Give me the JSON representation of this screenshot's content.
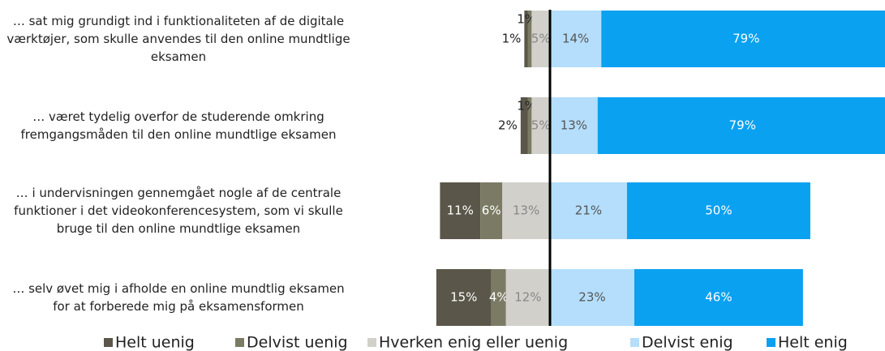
{
  "chart_data": {
    "type": "diverging-bar",
    "categories": [
      "… sat mig grundigt ind i funktionaliteten af de digitale værktøjer, som skulle anvendes til den online mundtlige eksamen",
      "… været tydelig overfor de studerende omkring fremgangsmåden til den online mundtlige eksamen",
      "… i undervisningen gennemgået nogle af de centrale funktioner i det videokonferencesystem, som vi skulle bruge til den online mundtlige eksamen",
      "… selv øvet mig i afholde en online mundtlig eksamen for at forberede mig på eksamensformen"
    ],
    "series": [
      {
        "name": "Helt uenig",
        "color": "#5a5649",
        "side": "left",
        "values": [
          1,
          2,
          11,
          15
        ],
        "value_labels": [
          "1%",
          "2%",
          "11%",
          "15%"
        ]
      },
      {
        "name": "Delvist uenig",
        "color": "#7b7b65",
        "side": "left",
        "values": [
          1,
          1,
          6,
          4
        ],
        "value_labels": [
          "1%",
          "1%",
          "6%",
          "4%"
        ]
      },
      {
        "name": "Hverken enig eller uenig",
        "color": "#d1d0cb",
        "side": "left",
        "values": [
          5,
          5,
          13,
          12
        ],
        "value_labels": [
          "5%",
          "5%",
          "13%",
          "12%"
        ]
      },
      {
        "name": "Delvist enig",
        "color": "#b4defc",
        "side": "right",
        "values": [
          14,
          13,
          21,
          23
        ],
        "value_labels": [
          "14%",
          "13%",
          "21%",
          "23%"
        ]
      },
      {
        "name": "Helt enig",
        "color": "#0aa1f0",
        "side": "right",
        "values": [
          79,
          79,
          50,
          46
        ],
        "value_labels": [
          "79%",
          "79%",
          "50%",
          "46%"
        ]
      }
    ]
  }
}
